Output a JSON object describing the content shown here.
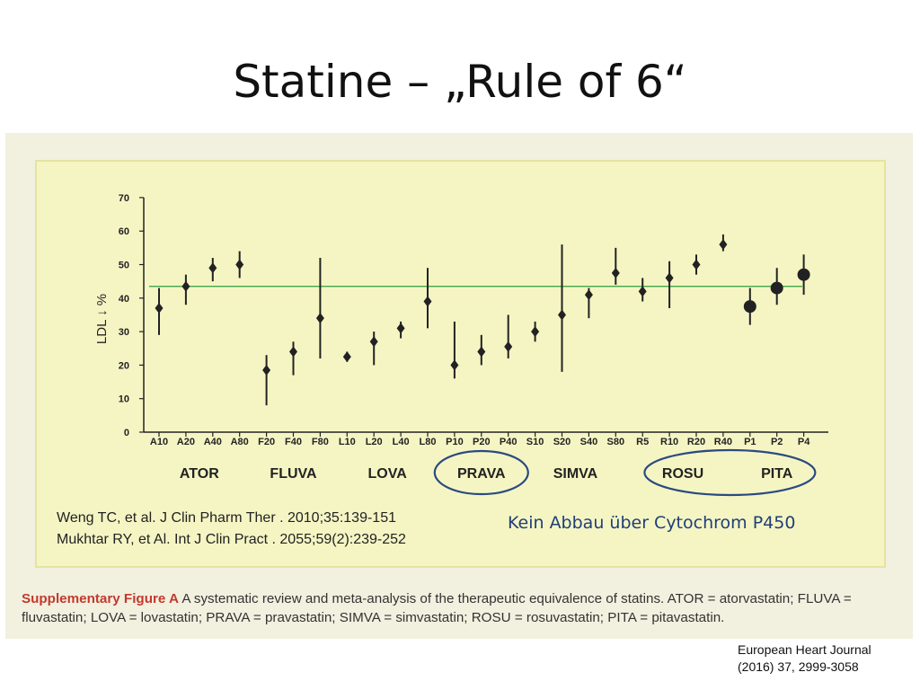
{
  "slide": {
    "title": "Statine – „Rule of 6“",
    "ref_line1": "Weng TC, et al. J Clin Pharm Ther . 2010;35:139-151",
    "ref_line2": "Mukhtar RY, et Al. Int J Clin Pract . 2055;59(2):239-252",
    "note": "Kein Abbau über Cytochrom P450",
    "caption_title": "Supplementary Figure A",
    "caption_text": "A systematic review and meta-analysis of the therapeutic equivalence of statins. ATOR = atorvastatin; FLUVA = fluvastatin; LOVA = lovastatin; PRAVA = pravastatin; SIMVA = simvastatin; ROSU = rosuvastatin; PITA = pitavastatin.",
    "source_line1": "European Heart Journal",
    "source_line2": "(2016) 37, 2999-3058"
  },
  "colors": {
    "reference_line": "#2e9e3e",
    "marker": "#222222",
    "circle_highlight": "#2b4a80",
    "caption_title": "#c13a2e"
  },
  "chart_data": {
    "type": "scatter",
    "title": "",
    "xlabel": "",
    "ylabel": "LDL ↓ %",
    "ylim": [
      0,
      70
    ],
    "yticks": [
      0,
      10,
      20,
      30,
      40,
      50,
      60,
      70
    ],
    "reference_line_y": 43.5,
    "categories": [
      "A10",
      "A20",
      "A40",
      "A80",
      "F20",
      "F40",
      "F80",
      "L10",
      "L20",
      "L40",
      "L80",
      "P10",
      "P20",
      "P40",
      "S10",
      "S20",
      "S40",
      "S80",
      "R5",
      "R10",
      "R20",
      "R40",
      "P1",
      "P2",
      "P4"
    ],
    "points": [
      {
        "x": "A10",
        "y": 37,
        "low": 29,
        "high": 43,
        "size": "small"
      },
      {
        "x": "A20",
        "y": 43.5,
        "low": 38,
        "high": 47,
        "size": "small"
      },
      {
        "x": "A40",
        "y": 49,
        "low": 45,
        "high": 52,
        "size": "small"
      },
      {
        "x": "A80",
        "y": 50,
        "low": 46,
        "high": 54,
        "size": "small"
      },
      {
        "x": "F20",
        "y": 18.5,
        "low": 8,
        "high": 23,
        "size": "small"
      },
      {
        "x": "F40",
        "y": 24,
        "low": 17,
        "high": 27,
        "size": "small"
      },
      {
        "x": "F80",
        "y": 34,
        "low": 22,
        "high": 52,
        "size": "small"
      },
      {
        "x": "L10",
        "y": 22.5,
        "low": 21,
        "high": 24,
        "size": "small"
      },
      {
        "x": "L20",
        "y": 27,
        "low": 20,
        "high": 30,
        "size": "small"
      },
      {
        "x": "L40",
        "y": 31,
        "low": 28,
        "high": 33,
        "size": "small"
      },
      {
        "x": "L80",
        "y": 39,
        "low": 31,
        "high": 49,
        "size": "small"
      },
      {
        "x": "P10",
        "y": 20,
        "low": 16,
        "high": 33,
        "size": "small"
      },
      {
        "x": "P20",
        "y": 24,
        "low": 20,
        "high": 29,
        "size": "small"
      },
      {
        "x": "P40",
        "y": 25.5,
        "low": 22,
        "high": 35,
        "size": "small"
      },
      {
        "x": "S10",
        "y": 30,
        "low": 27,
        "high": 33,
        "size": "small"
      },
      {
        "x": "S20",
        "y": 35,
        "low": 18,
        "high": 56,
        "size": "small"
      },
      {
        "x": "S40",
        "y": 41,
        "low": 34,
        "high": 43,
        "size": "small"
      },
      {
        "x": "S80",
        "y": 47.5,
        "low": 44,
        "high": 55,
        "size": "small"
      },
      {
        "x": "R5",
        "y": 42,
        "low": 39,
        "high": 46,
        "size": "small"
      },
      {
        "x": "R10",
        "y": 46,
        "low": 37,
        "high": 51,
        "size": "small"
      },
      {
        "x": "R20",
        "y": 50,
        "low": 47,
        "high": 53,
        "size": "small"
      },
      {
        "x": "R40",
        "y": 56,
        "low": 54,
        "high": 59,
        "size": "small"
      },
      {
        "x": "P1",
        "y": 37.5,
        "low": 32,
        "high": 43,
        "size": "large"
      },
      {
        "x": "P2",
        "y": 43,
        "low": 38,
        "high": 49,
        "size": "large"
      },
      {
        "x": "P4",
        "y": 47,
        "low": 41,
        "high": 53,
        "size": "large"
      }
    ],
    "groups": [
      {
        "label": "ATOR",
        "from": 0,
        "to": 3,
        "circled": false
      },
      {
        "label": "FLUVA",
        "from": 4,
        "to": 6,
        "circled": false
      },
      {
        "label": "LOVA",
        "from": 7,
        "to": 10,
        "circled": false
      },
      {
        "label": "PRAVA",
        "from": 11,
        "to": 13,
        "circled": true
      },
      {
        "label": "SIMVA",
        "from": 14,
        "to": 17,
        "circled": false
      },
      {
        "label": "ROSU",
        "from": 18,
        "to": 21,
        "circled": true
      },
      {
        "label": "PITA",
        "from": 22,
        "to": 24,
        "circled": true
      }
    ]
  }
}
